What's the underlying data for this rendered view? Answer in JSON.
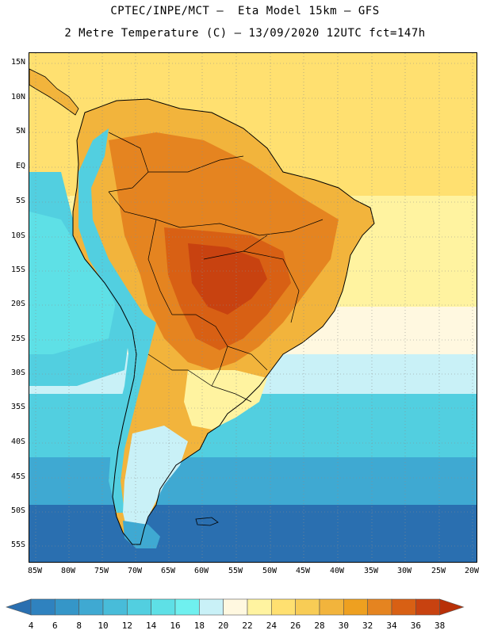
{
  "header": {
    "line1": "CPTEC/INPE/MCT –  Eta Model 15km – GFS",
    "line2": "2 Metre Temperature (C) – 13/09/2020 12UTC fct=147h"
  },
  "map": {
    "latitude_labels": [
      "15N",
      "10N",
      "5N",
      "EQ",
      "5S",
      "10S",
      "15S",
      "20S",
      "25S",
      "30S",
      "35S",
      "40S",
      "45S",
      "50S",
      "55S"
    ],
    "longitude_labels": [
      "85W",
      "80W",
      "75W",
      "70W",
      "65W",
      "60W",
      "55W",
      "50W",
      "45W",
      "40W",
      "35W",
      "30W",
      "25W",
      "20W"
    ]
  },
  "colorbar": {
    "labels": [
      "4",
      "6",
      "8",
      "10",
      "12",
      "14",
      "16",
      "18",
      "20",
      "22",
      "24",
      "26",
      "28",
      "30",
      "32",
      "34",
      "36",
      "38"
    ],
    "colors": [
      "#2a6fb0",
      "#2f82bf",
      "#3596c8",
      "#3fa9d2",
      "#48bcd9",
      "#52cfe0",
      "#5ee0e6",
      "#6ff0ef",
      "#c9f1f7",
      "#fff8e0",
      "#fff3a0",
      "#ffe070",
      "#f8cc55",
      "#f2b43c",
      "#eea020",
      "#e58420",
      "#d86014",
      "#c84210",
      "#b83008"
    ]
  },
  "colors": {
    "ocean_cold": "#2a6fb0",
    "ocean_cool": "#3fa9d2",
    "ocean_mid": "#52cfe0",
    "ocean_warm": "#c9f1f7",
    "ocean_tropic": "#fff3a0",
    "ocean_tropic_warm": "#ffe070",
    "land_hot": "#c84210",
    "land_warm": "#e58420",
    "land_mild": "#f2b43c",
    "andes_cold": "#52cfe0"
  }
}
